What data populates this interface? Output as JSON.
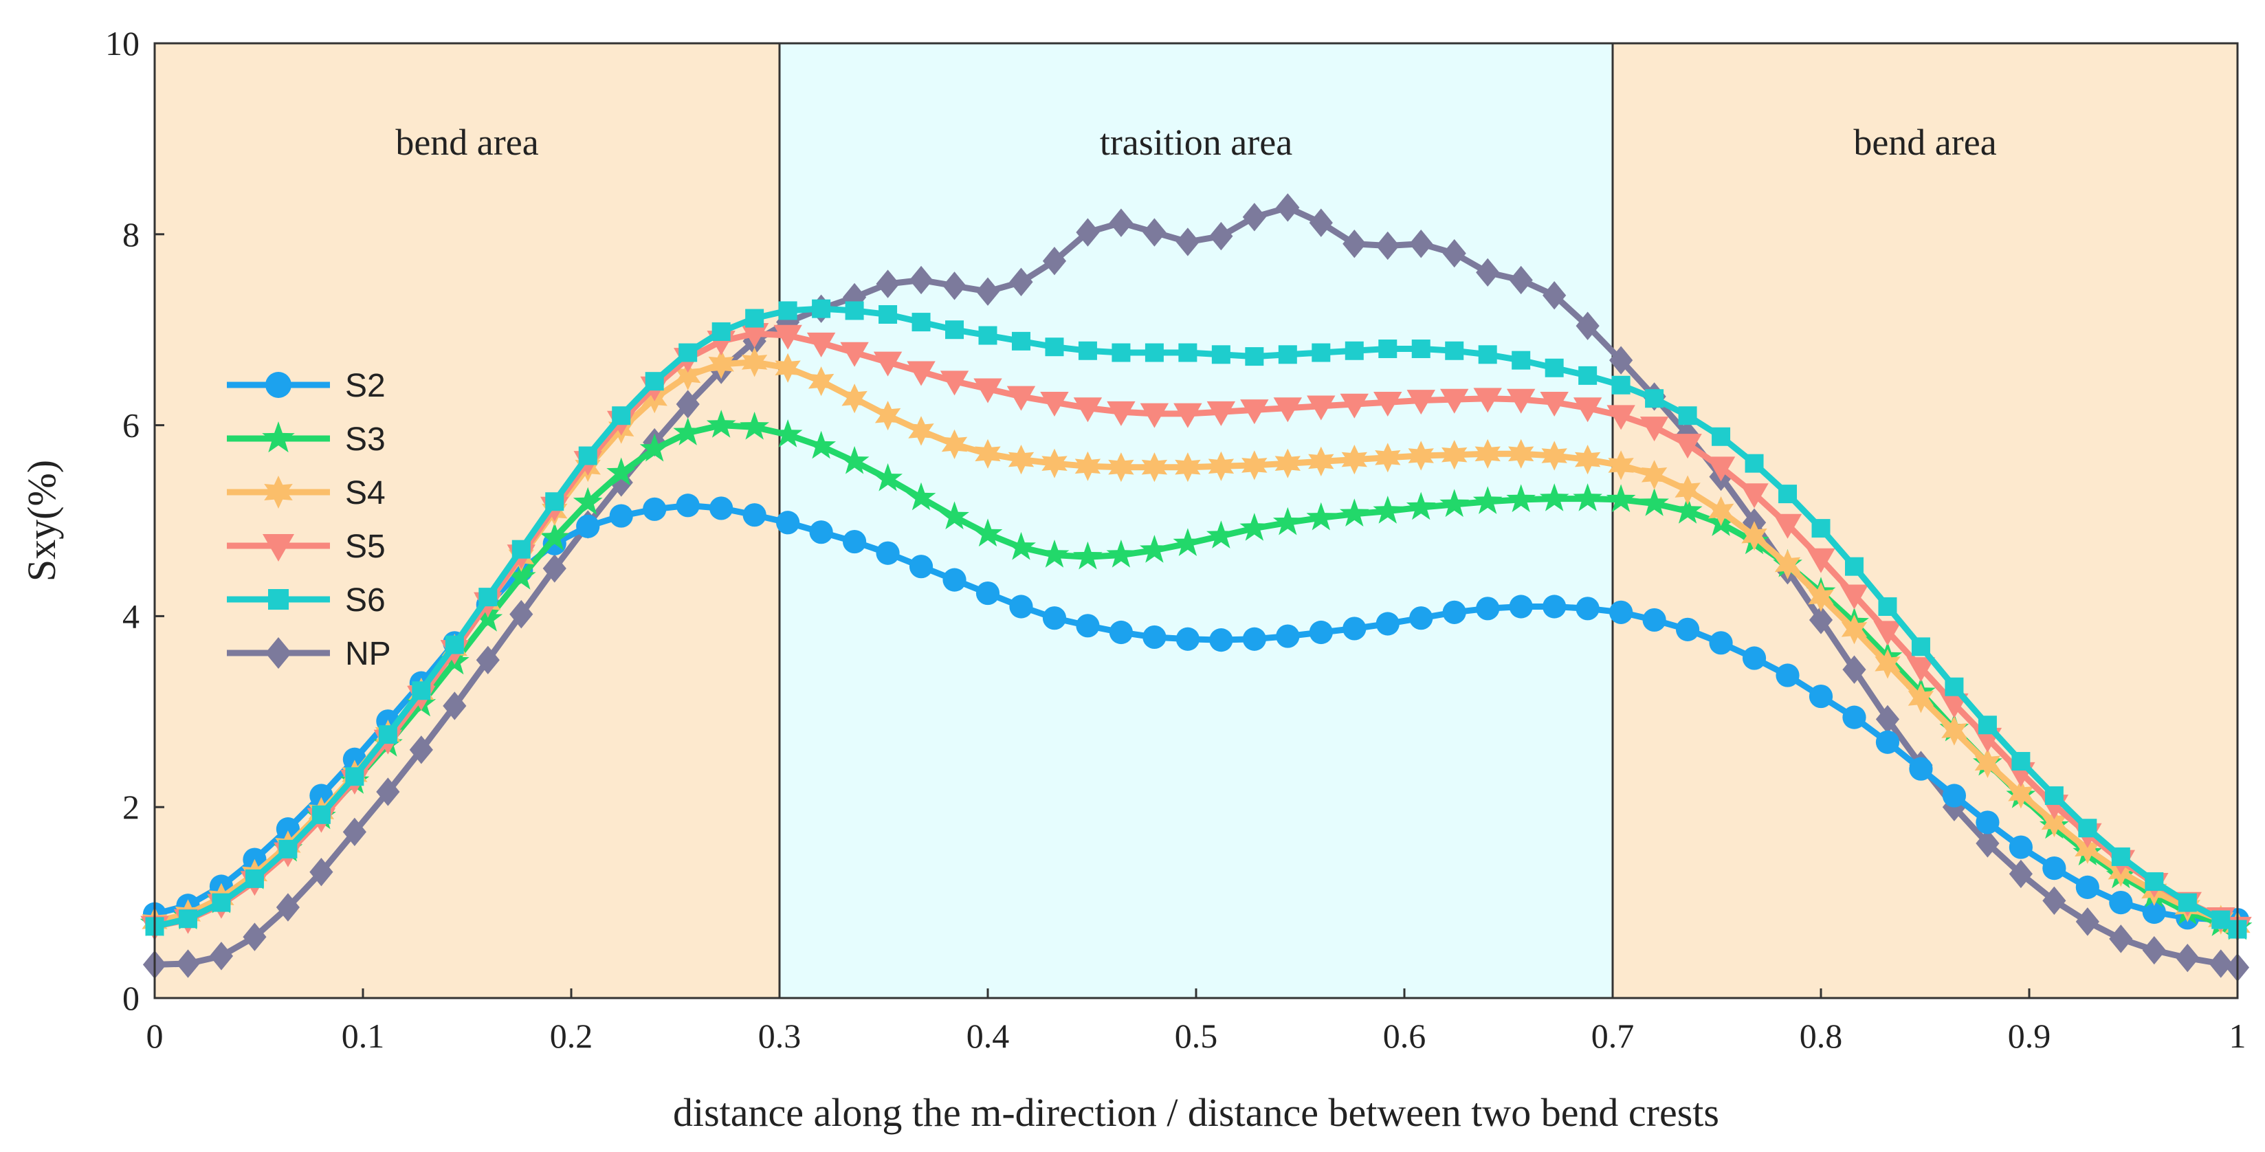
{
  "chart_data": {
    "type": "line",
    "title": "",
    "xlabel": "distance along the m-direction / distance between two bend crests",
    "ylabel": "Sxy(%)",
    "xlim": [
      0,
      1
    ],
    "ylim": [
      0,
      10
    ],
    "x_ticks": [
      0,
      0.1,
      0.2,
      0.3,
      0.4,
      0.5,
      0.6,
      0.7,
      0.8,
      0.9,
      1
    ],
    "x_tick_labels": [
      "0",
      "0.1",
      "0.2",
      "0.3",
      "0.4",
      "0.5",
      "0.6",
      "0.7",
      "0.8",
      "0.9",
      "1"
    ],
    "y_ticks": [
      0,
      2,
      4,
      6,
      8,
      10
    ],
    "y_tick_labels": [
      "0",
      "2",
      "4",
      "6",
      "8",
      "10"
    ],
    "grid": false,
    "legend_position": "left-middle",
    "regions": [
      {
        "label": "bend area",
        "x_start": 0,
        "x_end": 0.3,
        "color": "#FDE9CE"
      },
      {
        "label": "trasition area",
        "x_start": 0.3,
        "x_end": 0.7,
        "color": "#E6FDFE"
      },
      {
        "label": "bend area",
        "x_start": 0.7,
        "x_end": 1,
        "color": "#FDE9CE"
      }
    ],
    "x": [
      0,
      0.016,
      0.032,
      0.048,
      0.064,
      0.08,
      0.096,
      0.112,
      0.128,
      0.144,
      0.16,
      0.176,
      0.192,
      0.208,
      0.224,
      0.24,
      0.256,
      0.272,
      0.288,
      0.304,
      0.32,
      0.336,
      0.352,
      0.368,
      0.384,
      0.4,
      0.416,
      0.432,
      0.448,
      0.464,
      0.48,
      0.496,
      0.512,
      0.528,
      0.544,
      0.56,
      0.576,
      0.592,
      0.608,
      0.624,
      0.64,
      0.656,
      0.672,
      0.688,
      0.704,
      0.72,
      0.736,
      0.752,
      0.768,
      0.784,
      0.8,
      0.816,
      0.832,
      0.848,
      0.864,
      0.88,
      0.896,
      0.912,
      0.928,
      0.944,
      0.96,
      0.976,
      0.992,
      1
    ],
    "series": [
      {
        "name": "S2",
        "color": "#1CA2EE",
        "marker": "circle",
        "values": [
          0.88,
          0.97,
          1.17,
          1.45,
          1.77,
          2.12,
          2.5,
          2.9,
          3.3,
          3.72,
          4.12,
          4.48,
          4.76,
          4.94,
          5.05,
          5.12,
          5.16,
          5.13,
          5.06,
          4.98,
          4.88,
          4.78,
          4.66,
          4.52,
          4.38,
          4.24,
          4.1,
          3.98,
          3.9,
          3.83,
          3.78,
          3.76,
          3.75,
          3.76,
          3.79,
          3.83,
          3.87,
          3.92,
          3.98,
          4.04,
          4.08,
          4.1,
          4.1,
          4.08,
          4.04,
          3.96,
          3.86,
          3.72,
          3.56,
          3.38,
          3.16,
          2.94,
          2.68,
          2.4,
          2.12,
          1.84,
          1.58,
          1.36,
          1.16,
          1.0,
          0.9,
          0.84,
          0.82,
          0.82
        ]
      },
      {
        "name": "S3",
        "color": "#22D86A",
        "marker": "star",
        "values": [
          0.78,
          0.85,
          1.02,
          1.27,
          1.56,
          1.9,
          2.27,
          2.66,
          3.08,
          3.52,
          3.97,
          4.41,
          4.82,
          5.19,
          5.5,
          5.75,
          5.92,
          6.0,
          5.98,
          5.9,
          5.78,
          5.62,
          5.44,
          5.24,
          5.04,
          4.86,
          4.72,
          4.64,
          4.62,
          4.64,
          4.69,
          4.76,
          4.84,
          4.92,
          4.98,
          5.03,
          5.07,
          5.1,
          5.14,
          5.17,
          5.2,
          5.22,
          5.23,
          5.23,
          5.22,
          5.18,
          5.1,
          4.97,
          4.78,
          4.54,
          4.25,
          3.93,
          3.57,
          3.2,
          2.82,
          2.46,
          2.12,
          1.8,
          1.52,
          1.28,
          1.08,
          0.9,
          0.78,
          0.74
        ]
      },
      {
        "name": "S4",
        "color": "#FBBE6A",
        "marker": "star6",
        "values": [
          0.8,
          0.88,
          1.05,
          1.3,
          1.6,
          1.95,
          2.34,
          2.76,
          3.2,
          3.66,
          4.14,
          4.62,
          5.1,
          5.56,
          5.96,
          6.28,
          6.52,
          6.64,
          6.66,
          6.6,
          6.46,
          6.28,
          6.1,
          5.94,
          5.8,
          5.7,
          5.64,
          5.6,
          5.57,
          5.56,
          5.56,
          5.56,
          5.57,
          5.58,
          5.6,
          5.62,
          5.64,
          5.66,
          5.68,
          5.69,
          5.7,
          5.7,
          5.68,
          5.64,
          5.58,
          5.48,
          5.32,
          5.1,
          4.84,
          4.54,
          4.2,
          3.86,
          3.5,
          3.14,
          2.8,
          2.46,
          2.14,
          1.84,
          1.56,
          1.32,
          1.12,
          0.95,
          0.82,
          0.76
        ]
      },
      {
        "name": "S5",
        "color": "#F8887E",
        "marker": "triangle-down",
        "values": [
          0.75,
          0.82,
          0.98,
          1.22,
          1.52,
          1.88,
          2.28,
          2.7,
          3.16,
          3.64,
          4.14,
          4.64,
          5.14,
          5.62,
          6.04,
          6.4,
          6.7,
          6.88,
          6.96,
          6.94,
          6.86,
          6.76,
          6.66,
          6.56,
          6.46,
          6.38,
          6.3,
          6.24,
          6.18,
          6.14,
          6.12,
          6.12,
          6.14,
          6.16,
          6.18,
          6.2,
          6.22,
          6.24,
          6.26,
          6.27,
          6.28,
          6.27,
          6.24,
          6.18,
          6.1,
          5.98,
          5.8,
          5.56,
          5.28,
          4.96,
          4.6,
          4.22,
          3.84,
          3.46,
          3.08,
          2.72,
          2.36,
          2.02,
          1.72,
          1.44,
          1.2,
          1.0,
          0.84,
          0.74
        ]
      },
      {
        "name": "S6",
        "color": "#1ECDCD",
        "marker": "square",
        "values": [
          0.75,
          0.83,
          1.0,
          1.25,
          1.56,
          1.92,
          2.32,
          2.76,
          3.22,
          3.7,
          4.2,
          4.7,
          5.2,
          5.68,
          6.1,
          6.46,
          6.76,
          6.98,
          7.12,
          7.2,
          7.22,
          7.2,
          7.16,
          7.08,
          7.0,
          6.94,
          6.88,
          6.82,
          6.78,
          6.76,
          6.76,
          6.76,
          6.74,
          6.72,
          6.74,
          6.76,
          6.78,
          6.8,
          6.8,
          6.78,
          6.74,
          6.68,
          6.6,
          6.52,
          6.42,
          6.28,
          6.1,
          5.88,
          5.6,
          5.28,
          4.92,
          4.52,
          4.1,
          3.68,
          3.26,
          2.86,
          2.48,
          2.12,
          1.78,
          1.48,
          1.22,
          1.0,
          0.82,
          0.72
        ]
      },
      {
        "name": "NP",
        "color": "#7C7A9C",
        "marker": "diamond",
        "values": [
          0.35,
          0.36,
          0.44,
          0.64,
          0.95,
          1.32,
          1.74,
          2.16,
          2.6,
          3.06,
          3.54,
          4.02,
          4.5,
          4.96,
          5.4,
          5.82,
          6.22,
          6.58,
          6.88,
          7.08,
          7.22,
          7.34,
          7.48,
          7.52,
          7.46,
          7.4,
          7.5,
          7.72,
          8.02,
          8.12,
          8.02,
          7.92,
          7.98,
          8.18,
          8.28,
          8.12,
          7.9,
          7.88,
          7.9,
          7.8,
          7.6,
          7.52,
          7.36,
          7.04,
          6.68,
          6.3,
          5.9,
          5.46,
          4.98,
          4.48,
          3.96,
          3.44,
          2.92,
          2.44,
          2.0,
          1.62,
          1.3,
          1.02,
          0.8,
          0.62,
          0.5,
          0.42,
          0.36,
          0.32
        ]
      }
    ]
  }
}
